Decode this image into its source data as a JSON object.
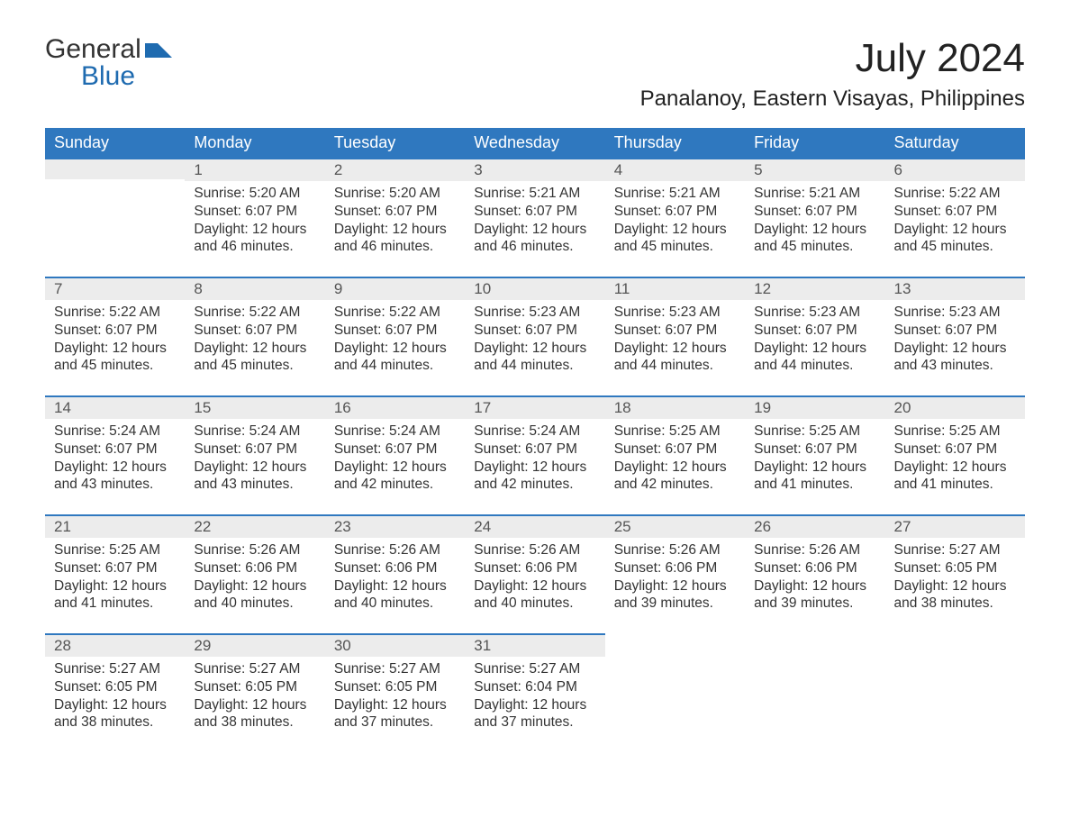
{
  "logo": {
    "word1": "General",
    "word2": "Blue",
    "icon_color": "#1f6bb0",
    "text_color_top": "#333333"
  },
  "header": {
    "month_title": "July 2024",
    "location": "Panalanoy, Eastern Visayas, Philippines"
  },
  "colors": {
    "header_bg": "#2f78bf",
    "header_text": "#ffffff",
    "daynum_bg": "#ececec",
    "row_border": "#2f78bf",
    "body_bg": "#ffffff",
    "text": "#333333"
  },
  "day_headers": [
    "Sunday",
    "Monday",
    "Tuesday",
    "Wednesday",
    "Thursday",
    "Friday",
    "Saturday"
  ],
  "sunrise_label": "Sunrise: ",
  "sunset_label": "Sunset: ",
  "daylight_label_prefix": "Daylight: ",
  "daylight_unit1": " hours and ",
  "daylight_unit2": " minutes.",
  "weeks": [
    [
      null,
      {
        "n": "1",
        "sunrise": "5:20 AM",
        "sunset": "6:07 PM",
        "dh": "12",
        "dm": "46"
      },
      {
        "n": "2",
        "sunrise": "5:20 AM",
        "sunset": "6:07 PM",
        "dh": "12",
        "dm": "46"
      },
      {
        "n": "3",
        "sunrise": "5:21 AM",
        "sunset": "6:07 PM",
        "dh": "12",
        "dm": "46"
      },
      {
        "n": "4",
        "sunrise": "5:21 AM",
        "sunset": "6:07 PM",
        "dh": "12",
        "dm": "45"
      },
      {
        "n": "5",
        "sunrise": "5:21 AM",
        "sunset": "6:07 PM",
        "dh": "12",
        "dm": "45"
      },
      {
        "n": "6",
        "sunrise": "5:22 AM",
        "sunset": "6:07 PM",
        "dh": "12",
        "dm": "45"
      }
    ],
    [
      {
        "n": "7",
        "sunrise": "5:22 AM",
        "sunset": "6:07 PM",
        "dh": "12",
        "dm": "45"
      },
      {
        "n": "8",
        "sunrise": "5:22 AM",
        "sunset": "6:07 PM",
        "dh": "12",
        "dm": "45"
      },
      {
        "n": "9",
        "sunrise": "5:22 AM",
        "sunset": "6:07 PM",
        "dh": "12",
        "dm": "44"
      },
      {
        "n": "10",
        "sunrise": "5:23 AM",
        "sunset": "6:07 PM",
        "dh": "12",
        "dm": "44"
      },
      {
        "n": "11",
        "sunrise": "5:23 AM",
        "sunset": "6:07 PM",
        "dh": "12",
        "dm": "44"
      },
      {
        "n": "12",
        "sunrise": "5:23 AM",
        "sunset": "6:07 PM",
        "dh": "12",
        "dm": "44"
      },
      {
        "n": "13",
        "sunrise": "5:23 AM",
        "sunset": "6:07 PM",
        "dh": "12",
        "dm": "43"
      }
    ],
    [
      {
        "n": "14",
        "sunrise": "5:24 AM",
        "sunset": "6:07 PM",
        "dh": "12",
        "dm": "43"
      },
      {
        "n": "15",
        "sunrise": "5:24 AM",
        "sunset": "6:07 PM",
        "dh": "12",
        "dm": "43"
      },
      {
        "n": "16",
        "sunrise": "5:24 AM",
        "sunset": "6:07 PM",
        "dh": "12",
        "dm": "42"
      },
      {
        "n": "17",
        "sunrise": "5:24 AM",
        "sunset": "6:07 PM",
        "dh": "12",
        "dm": "42"
      },
      {
        "n": "18",
        "sunrise": "5:25 AM",
        "sunset": "6:07 PM",
        "dh": "12",
        "dm": "42"
      },
      {
        "n": "19",
        "sunrise": "5:25 AM",
        "sunset": "6:07 PM",
        "dh": "12",
        "dm": "41"
      },
      {
        "n": "20",
        "sunrise": "5:25 AM",
        "sunset": "6:07 PM",
        "dh": "12",
        "dm": "41"
      }
    ],
    [
      {
        "n": "21",
        "sunrise": "5:25 AM",
        "sunset": "6:07 PM",
        "dh": "12",
        "dm": "41"
      },
      {
        "n": "22",
        "sunrise": "5:26 AM",
        "sunset": "6:06 PM",
        "dh": "12",
        "dm": "40"
      },
      {
        "n": "23",
        "sunrise": "5:26 AM",
        "sunset": "6:06 PM",
        "dh": "12",
        "dm": "40"
      },
      {
        "n": "24",
        "sunrise": "5:26 AM",
        "sunset": "6:06 PM",
        "dh": "12",
        "dm": "40"
      },
      {
        "n": "25",
        "sunrise": "5:26 AM",
        "sunset": "6:06 PM",
        "dh": "12",
        "dm": "39"
      },
      {
        "n": "26",
        "sunrise": "5:26 AM",
        "sunset": "6:06 PM",
        "dh": "12",
        "dm": "39"
      },
      {
        "n": "27",
        "sunrise": "5:27 AM",
        "sunset": "6:05 PM",
        "dh": "12",
        "dm": "38"
      }
    ],
    [
      {
        "n": "28",
        "sunrise": "5:27 AM",
        "sunset": "6:05 PM",
        "dh": "12",
        "dm": "38"
      },
      {
        "n": "29",
        "sunrise": "5:27 AM",
        "sunset": "6:05 PM",
        "dh": "12",
        "dm": "38"
      },
      {
        "n": "30",
        "sunrise": "5:27 AM",
        "sunset": "6:05 PM",
        "dh": "12",
        "dm": "37"
      },
      {
        "n": "31",
        "sunrise": "5:27 AM",
        "sunset": "6:04 PM",
        "dh": "12",
        "dm": "37"
      },
      null,
      null,
      null
    ]
  ]
}
